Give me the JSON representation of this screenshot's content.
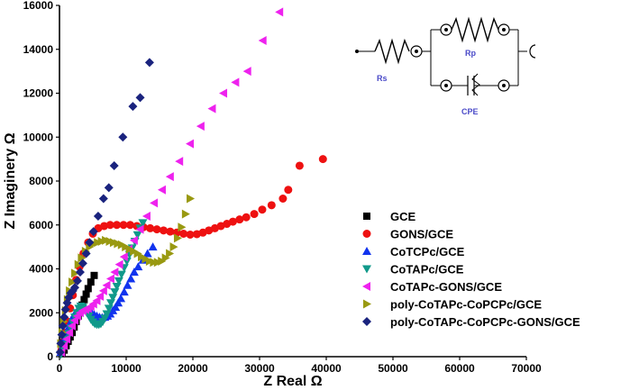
{
  "chart_data": {
    "type": "scatter",
    "title": "",
    "xlabel": "Z Real Ω",
    "ylabel": "Z Imaginery Ω",
    "xlim": [
      0,
      70000
    ],
    "ylim": [
      0,
      16000
    ],
    "xticks": [
      0,
      10000,
      20000,
      30000,
      40000,
      50000,
      60000,
      70000
    ],
    "yticks": [
      0,
      2000,
      4000,
      6000,
      8000,
      10000,
      12000,
      14000,
      16000
    ],
    "legend_position": "right-middle",
    "series": [
      {
        "name": "GCE",
        "marker": "square",
        "color": "#000000",
        "points": [
          [
            400,
            150
          ],
          [
            700,
            300
          ],
          [
            1000,
            500
          ],
          [
            1300,
            700
          ],
          [
            1600,
            900
          ],
          [
            1900,
            1100
          ],
          [
            2200,
            1350
          ],
          [
            2500,
            1600
          ],
          [
            2800,
            1850
          ],
          [
            3100,
            2100
          ],
          [
            3400,
            2350
          ],
          [
            3700,
            2600
          ],
          [
            4000,
            2850
          ],
          [
            4300,
            3100
          ],
          [
            4700,
            3400
          ],
          [
            5200,
            3700
          ]
        ]
      },
      {
        "name": "GONS/GCE",
        "marker": "circle",
        "color": "#ee1111",
        "points": [
          [
            300,
            300
          ],
          [
            600,
            700
          ],
          [
            900,
            1100
          ],
          [
            1200,
            1600
          ],
          [
            1600,
            2200
          ],
          [
            2000,
            2800
          ],
          [
            2500,
            3500
          ],
          [
            3000,
            4100
          ],
          [
            3600,
            4700
          ],
          [
            4300,
            5200
          ],
          [
            5000,
            5600
          ],
          [
            5800,
            5850
          ],
          [
            6700,
            5950
          ],
          [
            7600,
            6000
          ],
          [
            8600,
            6000
          ],
          [
            9600,
            6000
          ],
          [
            10600,
            6000
          ],
          [
            11600,
            5950
          ],
          [
            12600,
            5900
          ],
          [
            13600,
            5850
          ],
          [
            14600,
            5800
          ],
          [
            15600,
            5750
          ],
          [
            16600,
            5700
          ],
          [
            17600,
            5650
          ],
          [
            18600,
            5600
          ],
          [
            19600,
            5560
          ],
          [
            20600,
            5580
          ],
          [
            21500,
            5650
          ],
          [
            22400,
            5750
          ],
          [
            23300,
            5850
          ],
          [
            24200,
            5950
          ],
          [
            25100,
            6050
          ],
          [
            26000,
            6150
          ],
          [
            27000,
            6250
          ],
          [
            28000,
            6350
          ],
          [
            29200,
            6500
          ],
          [
            30400,
            6700
          ],
          [
            31800,
            6900
          ],
          [
            33500,
            7200
          ],
          [
            34300,
            7600
          ],
          [
            36000,
            8700
          ],
          [
            39500,
            9000
          ]
        ]
      },
      {
        "name": "CoTCPc/GCE",
        "marker": "triangle-up",
        "color": "#1133ee",
        "points": [
          [
            200,
            200
          ],
          [
            500,
            500
          ],
          [
            800,
            800
          ],
          [
            1100,
            1100
          ],
          [
            1400,
            1350
          ],
          [
            1700,
            1600
          ],
          [
            2000,
            1800
          ],
          [
            2300,
            1950
          ],
          [
            2600,
            2050
          ],
          [
            2900,
            2150
          ],
          [
            3200,
            2200
          ],
          [
            3600,
            2200
          ],
          [
            4000,
            2150
          ],
          [
            4400,
            2080
          ],
          [
            4800,
            2000
          ],
          [
            5200,
            1920
          ],
          [
            5600,
            1850
          ],
          [
            6000,
            1800
          ],
          [
            6400,
            1780
          ],
          [
            6800,
            1800
          ],
          [
            7200,
            1850
          ],
          [
            7600,
            1950
          ],
          [
            8000,
            2100
          ],
          [
            8400,
            2250
          ],
          [
            8800,
            2450
          ],
          [
            9200,
            2650
          ],
          [
            9700,
            2950
          ],
          [
            10200,
            3250
          ],
          [
            10700,
            3550
          ],
          [
            11200,
            3850
          ],
          [
            11800,
            4100
          ],
          [
            12500,
            4400
          ],
          [
            13200,
            4700
          ],
          [
            14000,
            5000
          ]
        ]
      },
      {
        "name": "CoTAPc/GCE",
        "marker": "triangle-down",
        "color": "#11998a",
        "points": [
          [
            200,
            100
          ],
          [
            500,
            300
          ],
          [
            800,
            550
          ],
          [
            1100,
            800
          ],
          [
            1400,
            1050
          ],
          [
            1700,
            1300
          ],
          [
            2000,
            1550
          ],
          [
            2300,
            1800
          ],
          [
            2600,
            2000
          ],
          [
            2900,
            2200
          ],
          [
            3200,
            2300
          ],
          [
            3500,
            2250
          ],
          [
            3800,
            2150
          ],
          [
            4100,
            2000
          ],
          [
            4400,
            1850
          ],
          [
            4700,
            1700
          ],
          [
            5000,
            1580
          ],
          [
            5300,
            1500
          ],
          [
            5600,
            1460
          ],
          [
            5900,
            1460
          ],
          [
            6200,
            1500
          ],
          [
            6500,
            1600
          ],
          [
            6800,
            1750
          ],
          [
            7100,
            1950
          ],
          [
            7400,
            2200
          ],
          [
            7700,
            2450
          ],
          [
            8000,
            2700
          ],
          [
            8300,
            2950
          ],
          [
            8600,
            3200
          ],
          [
            8900,
            3450
          ],
          [
            9300,
            3750
          ],
          [
            9700,
            4050
          ],
          [
            10100,
            4350
          ],
          [
            10500,
            4650
          ],
          [
            10900,
            4950
          ],
          [
            11300,
            5250
          ],
          [
            11700,
            5550
          ],
          [
            12100,
            5850
          ],
          [
            12500,
            6100
          ]
        ]
      },
      {
        "name": "CoTAPc-GONS/GCE",
        "marker": "triangle-left",
        "color": "#ee22ee",
        "points": [
          [
            300,
            200
          ],
          [
            700,
            500
          ],
          [
            1100,
            800
          ],
          [
            1500,
            1100
          ],
          [
            1900,
            1400
          ],
          [
            2300,
            1650
          ],
          [
            2700,
            1850
          ],
          [
            3100,
            2000
          ],
          [
            3500,
            2100
          ],
          [
            3900,
            2150
          ],
          [
            4300,
            2200
          ],
          [
            4700,
            2280
          ],
          [
            5100,
            2400
          ],
          [
            5600,
            2550
          ],
          [
            6100,
            2750
          ],
          [
            6600,
            3000
          ],
          [
            7100,
            3250
          ],
          [
            7700,
            3550
          ],
          [
            8300,
            3850
          ],
          [
            9000,
            4200
          ],
          [
            9700,
            4550
          ],
          [
            10400,
            4900
          ],
          [
            11200,
            5300
          ],
          [
            12100,
            5800
          ],
          [
            13100,
            6400
          ],
          [
            14200,
            7000
          ],
          [
            15400,
            7600
          ],
          [
            16600,
            8200
          ],
          [
            18000,
            8900
          ],
          [
            19600,
            9700
          ],
          [
            21200,
            10500
          ],
          [
            22900,
            11300
          ],
          [
            24600,
            12000
          ],
          [
            26400,
            12500
          ],
          [
            28200,
            13000
          ],
          [
            30500,
            14400
          ],
          [
            33000,
            15700
          ]
        ]
      },
      {
        "name": "poly-CoTAPc-CoPCPc/GCE",
        "marker": "triangle-right",
        "color": "#999911",
        "points": [
          [
            200,
            600
          ],
          [
            400,
            1100
          ],
          [
            600,
            1600
          ],
          [
            900,
            2100
          ],
          [
            1200,
            2600
          ],
          [
            1500,
            3000
          ],
          [
            1900,
            3400
          ],
          [
            2300,
            3800
          ],
          [
            2800,
            4200
          ],
          [
            3300,
            4500
          ],
          [
            3900,
            4800
          ],
          [
            4500,
            5000
          ],
          [
            5100,
            5150
          ],
          [
            5700,
            5200
          ],
          [
            6300,
            5250
          ],
          [
            6900,
            5300
          ],
          [
            7500,
            5250
          ],
          [
            8100,
            5200
          ],
          [
            8700,
            5150
          ],
          [
            9300,
            5100
          ],
          [
            9900,
            5000
          ],
          [
            10500,
            4900
          ],
          [
            11100,
            4800
          ],
          [
            11700,
            4700
          ],
          [
            12300,
            4550
          ],
          [
            12900,
            4450
          ],
          [
            13500,
            4350
          ],
          [
            14100,
            4300
          ],
          [
            14700,
            4300
          ],
          [
            15300,
            4350
          ],
          [
            15900,
            4500
          ],
          [
            16500,
            4700
          ],
          [
            17100,
            5000
          ],
          [
            17700,
            5400
          ],
          [
            18300,
            5900
          ],
          [
            18900,
            6500
          ],
          [
            19600,
            7200
          ]
        ]
      },
      {
        "name": "poly-CoTAPc-CoPCPc-GONS/GCE",
        "marker": "diamond",
        "color": "#1a237e",
        "points": [
          [
            100,
            200
          ],
          [
            200,
            600
          ],
          [
            350,
            1000
          ],
          [
            500,
            1400
          ],
          [
            700,
            1800
          ],
          [
            900,
            2150
          ],
          [
            1150,
            2450
          ],
          [
            1400,
            2700
          ],
          [
            1700,
            2900
          ],
          [
            2000,
            3000
          ],
          [
            2300,
            3150
          ],
          [
            2700,
            3450
          ],
          [
            3100,
            3850
          ],
          [
            3500,
            4250
          ],
          [
            4000,
            4700
          ],
          [
            4500,
            5200
          ],
          [
            5100,
            5700
          ],
          [
            5800,
            6400
          ],
          [
            6600,
            7200
          ],
          [
            7400,
            7700
          ],
          [
            8200,
            8700
          ],
          [
            9500,
            10000
          ],
          [
            11000,
            11400
          ],
          [
            12100,
            11800
          ],
          [
            13500,
            13400
          ]
        ]
      }
    ],
    "inset_circuit": {
      "labels": [
        "Rp",
        "Rs",
        "CPE"
      ]
    }
  }
}
